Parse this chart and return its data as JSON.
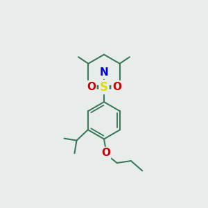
{
  "bg_color": "#e8eceb",
  "bond_color": "#3a7a5a",
  "N_color": "#0000dd",
  "S_color": "#dddd00",
  "O_color": "#cc0000",
  "line_width": 1.5,
  "font_size": 10,
  "fig_width": 3.0,
  "fig_height": 3.0,
  "dpi": 100,
  "xlim": [
    0,
    10
  ],
  "ylim": [
    0,
    10
  ]
}
